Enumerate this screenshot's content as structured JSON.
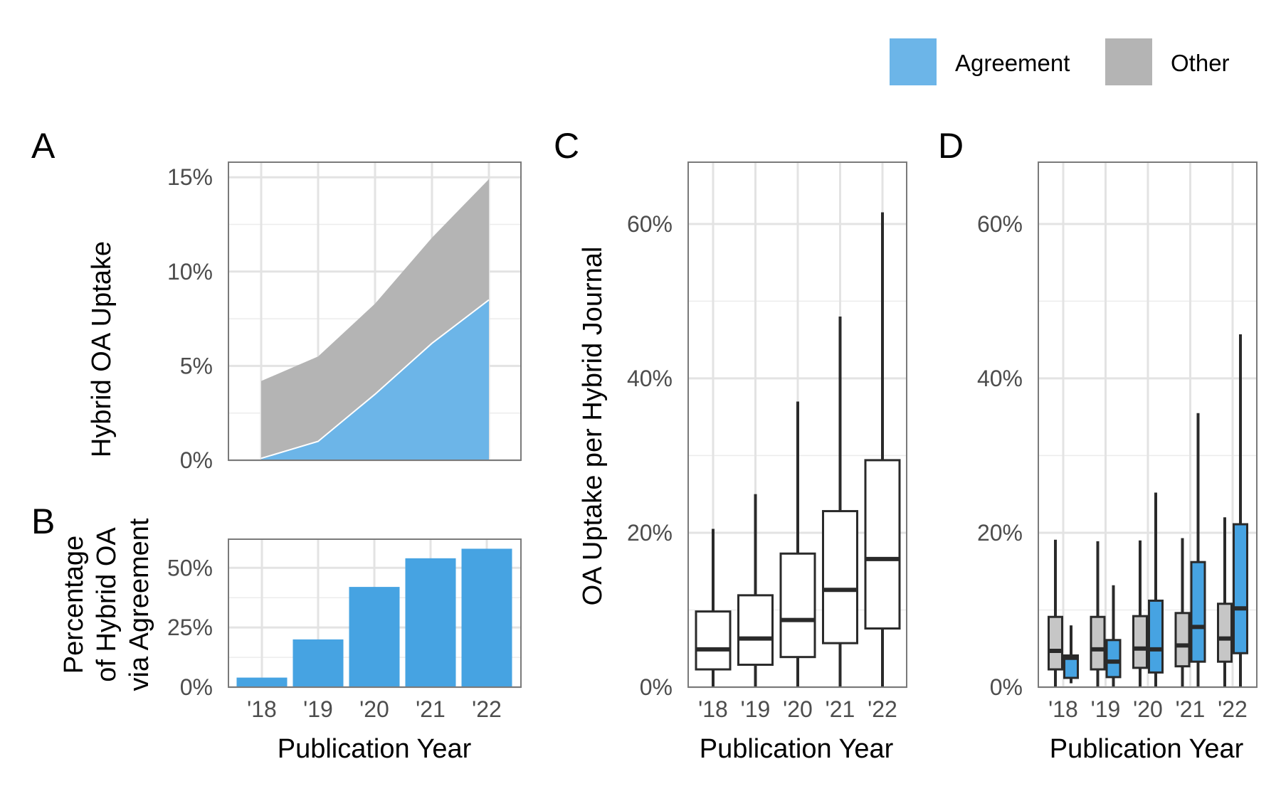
{
  "colors": {
    "agreement": "#6cb5e8",
    "agreement_bar": "#46a3e2",
    "other": "#b4b4b4",
    "box_other": "#c6c6c6",
    "box_agreement": "#46a3e2"
  },
  "legend": {
    "items": [
      {
        "label": "Agreement",
        "color": "#6cb5e8"
      },
      {
        "label": "Other",
        "color": "#b4b4b4"
      }
    ],
    "placement": "top-right"
  },
  "panel_tags": {
    "a": "A",
    "b": "B",
    "c": "C",
    "d": "D"
  },
  "x_axis_label": "Publication Year",
  "chart_data": [
    {
      "panel": "A",
      "type": "area",
      "stacked": true,
      "x": [
        2018,
        2019,
        2020,
        2021,
        2022
      ],
      "tick_labels": [
        "'18",
        "'19",
        "'20",
        "'21",
        "'22"
      ],
      "series": [
        {
          "name": "Agreement",
          "values": [
            0.1,
            1.0,
            3.5,
            6.2,
            8.5
          ]
        },
        {
          "name": "Other",
          "values": [
            4.1,
            4.5,
            4.8,
            5.6,
            6.4
          ]
        }
      ],
      "ylabel": "Hybrid OA Uptake",
      "ylim": [
        0,
        15.8
      ],
      "yticks": [
        0,
        5,
        10,
        15
      ],
      "ytick_labels": [
        "0%",
        "5%",
        "10%",
        "15%"
      ],
      "grid": true
    },
    {
      "panel": "B",
      "type": "bar",
      "categories": [
        "'18",
        "'19",
        "'20",
        "'21",
        "'22"
      ],
      "values": [
        4,
        20,
        42,
        54,
        58
      ],
      "ylabel_lines": [
        "Percentage",
        "of Hybrid OA",
        "via Agreement"
      ],
      "xlabel": "Publication Year",
      "ylim": [
        0,
        62
      ],
      "yticks": [
        0,
        25,
        50
      ],
      "ytick_labels": [
        "0%",
        "25%",
        "50%"
      ],
      "grid": true
    },
    {
      "panel": "C",
      "type": "box",
      "categories": [
        "'18",
        "'19",
        "'20",
        "'21",
        "'22"
      ],
      "boxes": [
        {
          "low": 0,
          "q1": 2.3,
          "median": 4.9,
          "q3": 9.8,
          "high": 20.5
        },
        {
          "low": 0,
          "q1": 2.9,
          "median": 6.3,
          "q3": 11.9,
          "high": 25.0
        },
        {
          "low": 0,
          "q1": 3.9,
          "median": 8.7,
          "q3": 17.3,
          "high": 37.0
        },
        {
          "low": 0,
          "q1": 5.7,
          "median": 12.6,
          "q3": 22.8,
          "high": 48.0
        },
        {
          "low": 0,
          "q1": 7.6,
          "median": 16.6,
          "q3": 29.4,
          "high": 61.5
        }
      ],
      "ylabel": "OA Uptake per Hybrid Journal",
      "xlabel": "Publication Year",
      "ylim": [
        0,
        68
      ],
      "yticks": [
        0,
        20,
        40,
        60
      ],
      "ytick_labels": [
        "0%",
        "20%",
        "40%",
        "60%"
      ],
      "grid": true
    },
    {
      "panel": "D",
      "type": "box",
      "categories": [
        "'18",
        "'19",
        "'20",
        "'21",
        "'22"
      ],
      "series": [
        {
          "name": "Other",
          "boxes": [
            {
              "low": 0,
              "q1": 2.3,
              "median": 4.7,
              "q3": 9.1,
              "high": 19.1
            },
            {
              "low": 0,
              "q1": 2.3,
              "median": 4.9,
              "q3": 9.1,
              "high": 18.9
            },
            {
              "low": 0,
              "q1": 2.5,
              "median": 5.0,
              "q3": 9.2,
              "high": 19.0
            },
            {
              "low": 0,
              "q1": 2.7,
              "median": 5.4,
              "q3": 9.6,
              "high": 19.3
            },
            {
              "low": 0,
              "q1": 3.3,
              "median": 6.3,
              "q3": 10.8,
              "high": 22.0
            }
          ]
        },
        {
          "name": "Agreement",
          "boxes": [
            {
              "low": 0.5,
              "q1": 1.2,
              "median": 3.8,
              "q3": 4.1,
              "high": 8.0
            },
            {
              "low": 0,
              "q1": 1.3,
              "median": 3.3,
              "q3": 6.1,
              "high": 13.2
            },
            {
              "low": 0,
              "q1": 1.9,
              "median": 4.9,
              "q3": 11.2,
              "high": 25.2
            },
            {
              "low": 0,
              "q1": 3.3,
              "median": 7.8,
              "q3": 16.2,
              "high": 35.5
            },
            {
              "low": 0,
              "q1": 4.4,
              "median": 10.2,
              "q3": 21.1,
              "high": 45.7
            }
          ]
        }
      ],
      "xlabel": "Publication Year",
      "ylim": [
        0,
        68
      ],
      "yticks": [
        0,
        20,
        40,
        60
      ],
      "ytick_labels": [
        "0%",
        "20%",
        "40%",
        "60%"
      ],
      "grid": true
    }
  ]
}
